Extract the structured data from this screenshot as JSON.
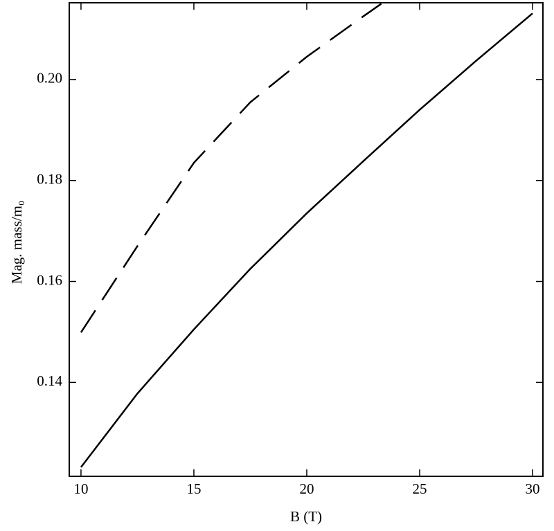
{
  "chart_data": {
    "type": "line",
    "xlabel": "B (T)",
    "ylabel": "Mag. mass/m₀",
    "xlim": [
      9.48,
      30.46
    ],
    "ylim": [
      0.1214,
      0.2152
    ],
    "xticks": [
      10,
      15,
      20,
      25,
      30
    ],
    "yticks": [
      {
        "value": 0.14,
        "label": "0.14"
      },
      {
        "value": 0.16,
        "label": "0.16"
      },
      {
        "value": 0.18,
        "label": "0.18"
      },
      {
        "value": 0.2,
        "label": "0.20"
      }
    ],
    "series": [
      {
        "color": "#000000",
        "dashed": false,
        "x": [
          10,
          12.5,
          15,
          17.5,
          20,
          22.5,
          25,
          27.5,
          30
        ],
        "values": [
          0.1232,
          0.1378,
          0.1505,
          0.1625,
          0.1735,
          0.1838,
          0.194,
          0.2037,
          0.2131
        ]
      },
      {
        "color": "#000000",
        "dashed": true,
        "x": [
          10,
          12.5,
          15,
          17.5,
          20,
          22.5,
          23.3
        ],
        "values": [
          0.1499,
          0.167,
          0.1835,
          0.1955,
          0.2045,
          0.2125,
          0.215
        ]
      }
    ]
  }
}
